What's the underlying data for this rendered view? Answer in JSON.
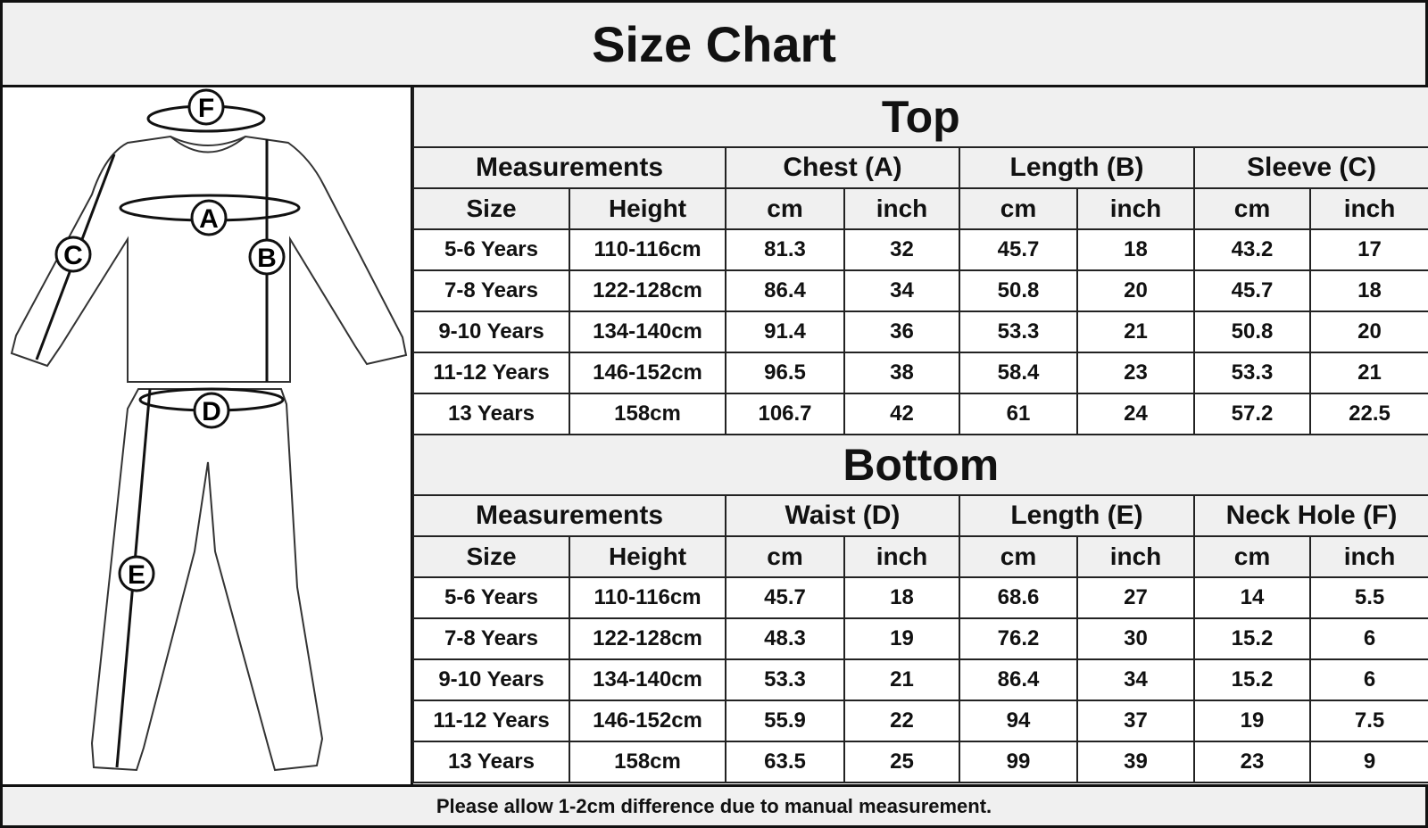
{
  "title": "Size Chart",
  "diagram_labels": [
    "A",
    "B",
    "C",
    "D",
    "E",
    "F"
  ],
  "top": {
    "title": "Top",
    "headers": [
      "Measurements",
      "Chest (A)",
      "Length (B)",
      "Sleeve (C)"
    ],
    "subheaders": [
      "Size",
      "Height",
      "cm",
      "inch",
      "cm",
      "inch",
      "cm",
      "inch"
    ],
    "rows": [
      [
        "5-6 Years",
        "110-116cm",
        "81.3",
        "32",
        "45.7",
        "18",
        "43.2",
        "17"
      ],
      [
        "7-8 Years",
        "122-128cm",
        "86.4",
        "34",
        "50.8",
        "20",
        "45.7",
        "18"
      ],
      [
        "9-10 Years",
        "134-140cm",
        "91.4",
        "36",
        "53.3",
        "21",
        "50.8",
        "20"
      ],
      [
        "11-12 Years",
        "146-152cm",
        "96.5",
        "38",
        "58.4",
        "23",
        "53.3",
        "21"
      ],
      [
        "13 Years",
        "158cm",
        "106.7",
        "42",
        "61",
        "24",
        "57.2",
        "22.5"
      ]
    ]
  },
  "bottom": {
    "title": "Bottom",
    "headers": [
      "Measurements",
      "Waist (D)",
      "Length (E)",
      "Neck Hole (F)"
    ],
    "subheaders": [
      "Size",
      "Height",
      "cm",
      "inch",
      "cm",
      "inch",
      "cm",
      "inch"
    ],
    "rows": [
      [
        "5-6 Years",
        "110-116cm",
        "45.7",
        "18",
        "68.6",
        "27",
        "14",
        "5.5"
      ],
      [
        "7-8 Years",
        "122-128cm",
        "48.3",
        "19",
        "76.2",
        "30",
        "15.2",
        "6"
      ],
      [
        "9-10 Years",
        "134-140cm",
        "53.3",
        "21",
        "86.4",
        "34",
        "15.2",
        "6"
      ],
      [
        "11-12 Years",
        "146-152cm",
        "55.9",
        "22",
        "94",
        "37",
        "19",
        "7.5"
      ],
      [
        "13 Years",
        "158cm",
        "63.5",
        "25",
        "99",
        "39",
        "23",
        "9"
      ]
    ]
  },
  "footer": "Please allow 1-2cm difference due to manual measurement."
}
